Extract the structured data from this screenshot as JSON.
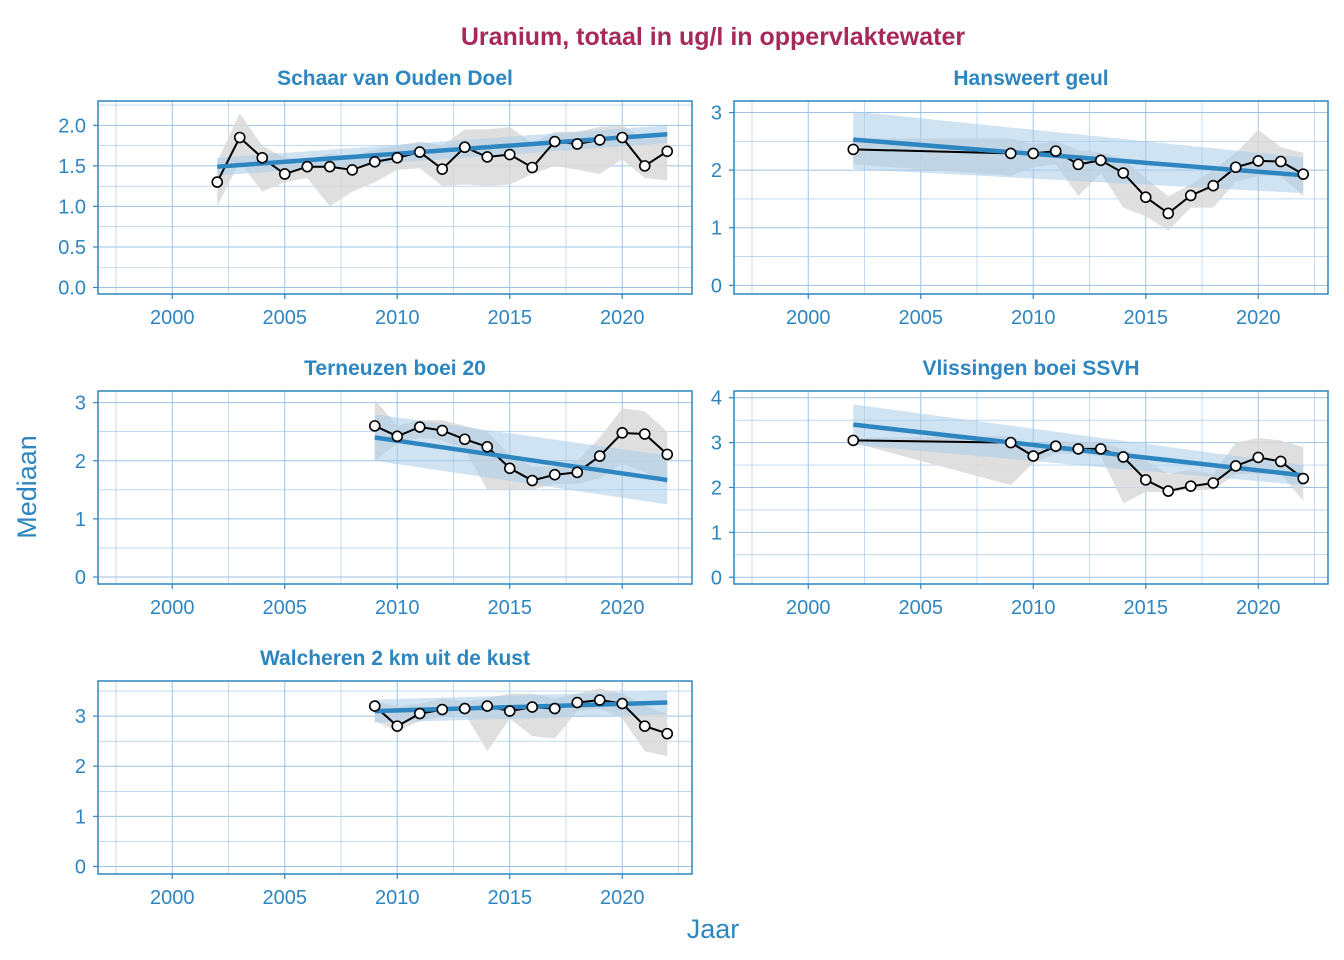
{
  "title": "Uranium, totaal in ug/l in oppervlaktewater",
  "xlabel": "Jaar",
  "ylabel": "Mediaan",
  "colors": {
    "title": "#A7295B",
    "accent": "#2E86C1",
    "panel_border": "#2E86C1",
    "grid": "#9DC3E6",
    "band_grey": "#D9D9D9",
    "band_blue": "#A9CCEA",
    "line": "#000000",
    "point_fill": "#FFFFFF"
  },
  "chart_data": [
    {
      "type": "line",
      "title": "Schaar van Ouden Doel",
      "xlim": [
        1996.7,
        2023.1
      ],
      "ylim": [
        -0.08,
        2.3
      ],
      "xticks": [
        "2000",
        "2005",
        "2010",
        "2015",
        "2020"
      ],
      "yticks": [
        "0.0",
        "0.5",
        "1.0",
        "1.5",
        "2.0"
      ],
      "x": [
        2002,
        2003,
        2004,
        2005,
        2006,
        2007,
        2008,
        2009,
        2010,
        2011,
        2012,
        2013,
        2014,
        2015,
        2016,
        2017,
        2018,
        2019,
        2020,
        2021,
        2022
      ],
      "median": [
        1.3,
        1.85,
        1.6,
        1.4,
        1.49,
        1.49,
        1.45,
        1.55,
        1.6,
        1.67,
        1.46,
        1.73,
        1.61,
        1.64,
        1.48,
        1.8,
        1.77,
        1.82,
        1.85,
        1.5,
        1.68
      ],
      "band_low": [
        1.0,
        1.55,
        1.18,
        1.3,
        1.35,
        1.0,
        1.18,
        1.3,
        1.45,
        1.47,
        1.25,
        1.27,
        1.25,
        1.27,
        1.4,
        1.5,
        1.45,
        1.4,
        1.58,
        1.35,
        1.32
      ],
      "band_high": [
        1.55,
        2.15,
        1.75,
        1.6,
        1.58,
        1.65,
        1.62,
        1.7,
        1.75,
        1.8,
        1.75,
        1.95,
        1.95,
        1.98,
        1.78,
        1.92,
        1.92,
        1.98,
        2.0,
        1.82,
        1.92
      ],
      "trend": {
        "x": [
          2002,
          2022
        ],
        "y": [
          1.49,
          1.89
        ],
        "ci_low": [
          1.38,
          1.78
        ],
        "ci_high": [
          1.6,
          2.0
        ]
      }
    },
    {
      "type": "line",
      "title": "Hansweert geul",
      "xlim": [
        1996.7,
        2023.1
      ],
      "ylim": [
        -0.15,
        3.2
      ],
      "xticks": [
        "2000",
        "2005",
        "2010",
        "2015",
        "2020"
      ],
      "yticks": [
        "0",
        "1",
        "2",
        "3"
      ],
      "x": [
        2002,
        2009,
        2010,
        2011,
        2012,
        2013,
        2014,
        2015,
        2016,
        2017,
        2018,
        2019,
        2020,
        2021,
        2022
      ],
      "median": [
        2.36,
        2.29,
        2.29,
        2.33,
        2.1,
        2.17,
        1.95,
        1.53,
        1.25,
        1.56,
        1.73,
        2.05,
        2.16,
        2.15,
        1.93
      ],
      "band_low": [
        2.1,
        1.9,
        2.05,
        2.1,
        1.55,
        1.95,
        1.35,
        1.2,
        0.95,
        1.35,
        1.35,
        1.8,
        1.9,
        1.9,
        1.55
      ],
      "band_high": [
        2.55,
        2.55,
        2.45,
        2.5,
        2.35,
        2.3,
        2.2,
        1.85,
        1.55,
        1.75,
        2.0,
        2.3,
        2.7,
        2.4,
        2.3
      ],
      "trend": {
        "x": [
          2002,
          2022
        ],
        "y": [
          2.53,
          1.91
        ],
        "ci_low": [
          2.02,
          1.6
        ],
        "ci_high": [
          3.02,
          2.22
        ]
      }
    },
    {
      "type": "line",
      "title": "Terneuzen boei 20",
      "xlim": [
        1996.7,
        2023.1
      ],
      "ylim": [
        -0.12,
        3.2
      ],
      "xticks": [
        "2000",
        "2005",
        "2010",
        "2015",
        "2020"
      ],
      "yticks": [
        "0",
        "1",
        "2",
        "3"
      ],
      "x": [
        2009,
        2010,
        2011,
        2012,
        2013,
        2014,
        2015,
        2016,
        2017,
        2018,
        2019,
        2020,
        2021,
        2022
      ],
      "median": [
        2.6,
        2.42,
        2.58,
        2.52,
        2.37,
        2.24,
        1.87,
        1.66,
        1.76,
        1.8,
        2.08,
        2.48,
        2.46,
        2.11
      ],
      "band_low": [
        2.0,
        2.3,
        2.4,
        2.35,
        2.2,
        1.5,
        1.5,
        1.5,
        1.6,
        1.6,
        1.7,
        1.95,
        1.8,
        1.6
      ],
      "band_high": [
        3.05,
        2.6,
        2.7,
        2.7,
        2.6,
        2.5,
        2.1,
        1.9,
        1.9,
        2.0,
        2.4,
        2.9,
        2.85,
        2.5
      ],
      "trend": {
        "x": [
          2009,
          2022
        ],
        "y": [
          2.4,
          1.67
        ],
        "ci_low": [
          2.0,
          1.25
        ],
        "ci_high": [
          2.8,
          2.09
        ]
      }
    },
    {
      "type": "line",
      "title": "Vlissingen boei SSVH",
      "xlim": [
        1996.7,
        2023.1
      ],
      "ylim": [
        -0.15,
        4.15
      ],
      "xticks": [
        "2000",
        "2005",
        "2010",
        "2015",
        "2020"
      ],
      "yticks": [
        "0",
        "1",
        "2",
        "3",
        "4"
      ],
      "x": [
        2002,
        2009,
        2010,
        2011,
        2012,
        2013,
        2014,
        2015,
        2016,
        2017,
        2018,
        2019,
        2020,
        2021,
        2022
      ],
      "median": [
        3.05,
        3.0,
        2.7,
        2.92,
        2.86,
        2.86,
        2.68,
        2.17,
        1.92,
        2.03,
        2.1,
        2.48,
        2.67,
        2.58,
        2.2
      ],
      "band_low": [
        3.0,
        2.05,
        2.55,
        2.75,
        2.75,
        2.7,
        1.65,
        1.9,
        1.9,
        1.95,
        1.95,
        2.3,
        2.3,
        2.3,
        1.7
      ],
      "band_high": [
        3.1,
        3.15,
        2.9,
        3.05,
        3.0,
        3.0,
        2.85,
        2.6,
        2.3,
        2.4,
        2.3,
        3.0,
        3.1,
        3.05,
        2.9
      ],
      "trend": {
        "x": [
          2002,
          2022
        ],
        "y": [
          3.4,
          2.27
        ],
        "ci_low": [
          2.95,
          2.05
        ],
        "ci_high": [
          3.85,
          2.5
        ]
      }
    },
    {
      "type": "line",
      "title": "Walcheren 2 km uit de kust",
      "xlim": [
        1996.7,
        2023.1
      ],
      "ylim": [
        -0.15,
        3.7
      ],
      "xticks": [
        "2000",
        "2005",
        "2010",
        "2015",
        "2020"
      ],
      "yticks": [
        "0",
        "1",
        "2",
        "3"
      ],
      "x": [
        2009,
        2010,
        2011,
        2012,
        2013,
        2014,
        2015,
        2016,
        2017,
        2018,
        2019,
        2020,
        2021,
        2022
      ],
      "median": [
        3.2,
        2.8,
        3.05,
        3.13,
        3.15,
        3.2,
        3.1,
        3.18,
        3.15,
        3.27,
        3.32,
        3.25,
        2.8,
        2.65
      ],
      "band_low": [
        2.9,
        2.7,
        2.9,
        3.0,
        3.05,
        2.3,
        2.95,
        2.6,
        2.55,
        3.1,
        3.15,
        2.95,
        2.3,
        2.2
      ],
      "band_high": [
        3.3,
        3.2,
        3.25,
        3.35,
        3.3,
        3.35,
        3.45,
        3.45,
        3.35,
        3.45,
        3.55,
        3.45,
        3.2,
        3.05
      ],
      "trend": {
        "x": [
          2009,
          2022
        ],
        "y": [
          3.1,
          3.27
        ],
        "ci_low": [
          2.87,
          3.03
        ],
        "ci_high": [
          3.33,
          3.5
        ]
      }
    }
  ]
}
